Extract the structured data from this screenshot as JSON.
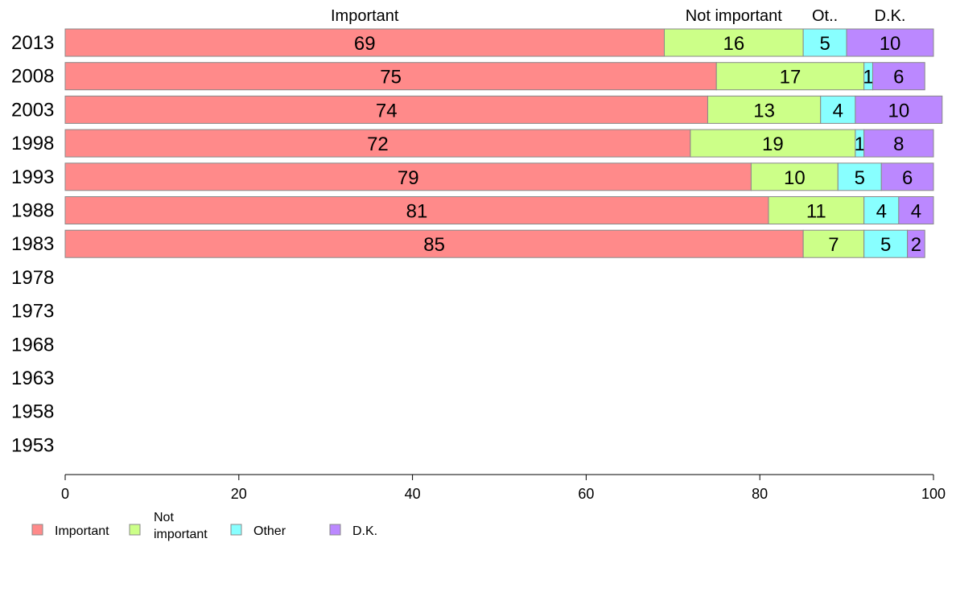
{
  "chart_data": {
    "type": "bar",
    "orientation": "horizontal",
    "stacked": true,
    "categories": [
      "2013",
      "2008",
      "2003",
      "1998",
      "1993",
      "1988",
      "1983",
      "1978",
      "1973",
      "1968",
      "1963",
      "1958",
      "1953"
    ],
    "series": [
      {
        "name": "Important",
        "color": "#ff8a8a",
        "values": [
          69,
          75,
          74,
          72,
          79,
          81,
          85,
          null,
          null,
          null,
          null,
          null,
          null
        ]
      },
      {
        "name": "Not important",
        "color": "#ccff88",
        "values": [
          16,
          17,
          13,
          19,
          10,
          11,
          7,
          null,
          null,
          null,
          null,
          null,
          null
        ]
      },
      {
        "name": "Other",
        "color": "#88ffff",
        "values": [
          5,
          1,
          4,
          1,
          5,
          4,
          5,
          null,
          null,
          null,
          null,
          null,
          null
        ]
      },
      {
        "name": "D.K.",
        "color": "#bb88ff",
        "values": [
          10,
          6,
          10,
          8,
          6,
          4,
          2,
          null,
          null,
          null,
          null,
          null,
          null
        ]
      }
    ],
    "column_headers": [
      "Important",
      "Not important",
      "Ot..",
      "D.K."
    ],
    "legend_labels": [
      [
        "Important"
      ],
      [
        "Not",
        "important"
      ],
      [
        "Other"
      ],
      [
        "D.K."
      ]
    ],
    "xlim": [
      0,
      100
    ],
    "xticks": [
      0,
      20,
      40,
      60,
      80,
      100
    ],
    "grid": false,
    "legend_position": "bottom-left"
  }
}
